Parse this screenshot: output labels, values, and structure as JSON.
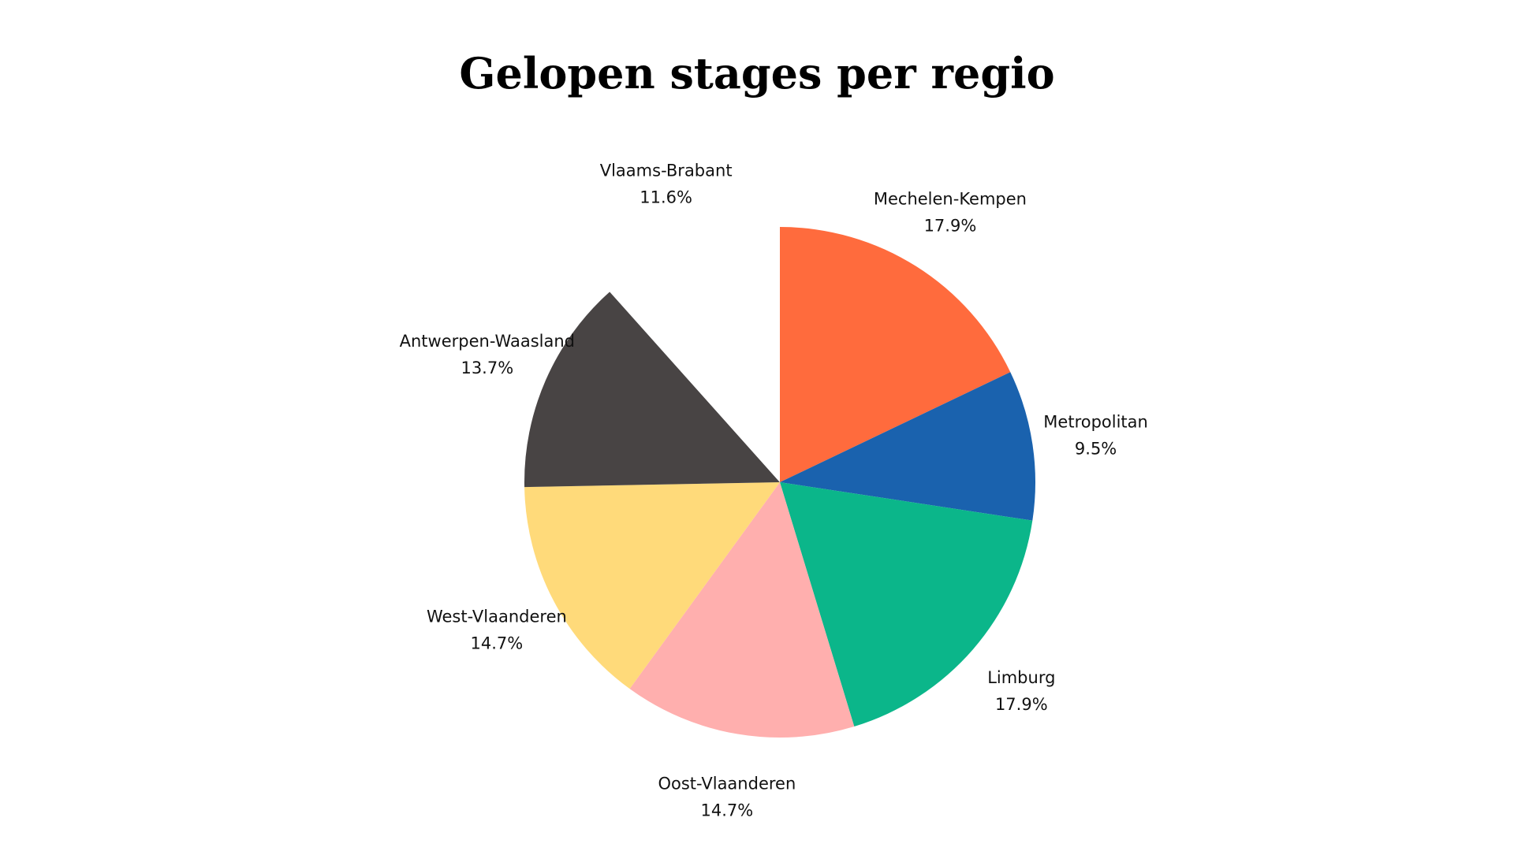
{
  "chart_data": {
    "type": "pie",
    "title": "Gelopen stages per regio",
    "categories": [
      "Mechelen-Kempen",
      "Metropolitan",
      "Limburg",
      "Oost-Vlaanderen",
      "West-Vlaanderen",
      "Antwerpen-Waasland",
      "Vlaams-Brabant"
    ],
    "values": [
      17.9,
      9.5,
      17.9,
      14.7,
      14.7,
      13.7,
      11.6
    ],
    "value_labels": [
      "17.9%",
      "9.5%",
      "17.9%",
      "14.7%",
      "14.7%",
      "13.7%",
      "11.6%"
    ],
    "colors": [
      "#ff6b3d",
      "#1a62ae",
      "#0bb68a",
      "#ffafae",
      "#ffda7a",
      "#484444",
      "#ffffff"
    ]
  }
}
